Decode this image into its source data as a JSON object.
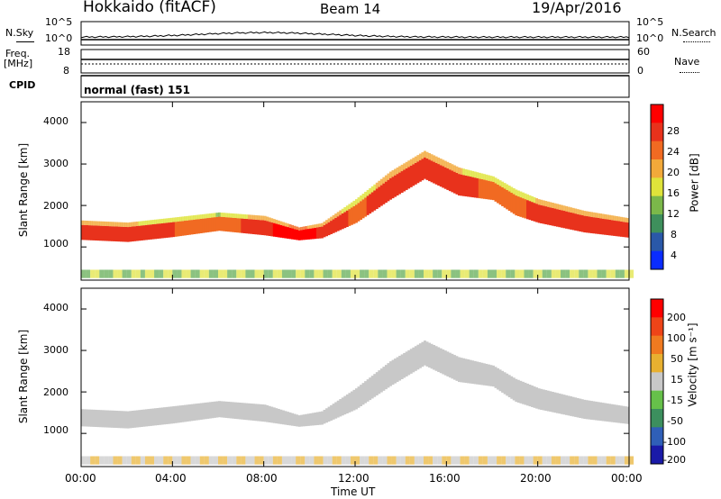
{
  "header": {
    "station": "Hokkaido (fitACF)",
    "beam": "Beam 14",
    "date": "19/Apr/2016"
  },
  "noise_panel": {
    "left_label": "N.Sky",
    "right_label": "N.Search",
    "left_ticks": [
      "10^5",
      "10^0"
    ],
    "right_ticks": [
      "10^5",
      "10^0"
    ]
  },
  "freq_panel": {
    "label_line1": "Freq.",
    "label_line2": "[MHz]",
    "right_label": "Nave",
    "left_ticks": [
      "18",
      "8"
    ],
    "right_ticks": [
      "60",
      "0"
    ]
  },
  "cpid_panel": {
    "label": "CPID",
    "mode_text": "normal (fast) 151"
  },
  "xaxis": {
    "label": "Time UT",
    "ticks": [
      "00:00",
      "04:00",
      "08:00",
      "12:00",
      "16:00",
      "20:00",
      "00:00"
    ]
  },
  "power_colorbar": {
    "title": "Power [dB]",
    "ticks": [
      "28",
      "24",
      "20",
      "16",
      "12",
      "8",
      "4"
    ],
    "colors": [
      "#0a2cff",
      "#2a58a8",
      "#3e8f5c",
      "#7bb84a",
      "#dfe33a",
      "#f2a93a",
      "#f16a22",
      "#e8321c",
      "#ff0000"
    ]
  },
  "velocity_colorbar": {
    "title": "Velocity [m s⁻¹]",
    "ticks": [
      "200",
      "100",
      "50",
      "15",
      "-15",
      "-50",
      "-100",
      "-200"
    ],
    "colors": [
      "#1a1aa8",
      "#2f5fb8",
      "#3c8f5e",
      "#66c04a",
      "#c8c8c8",
      "#e8b030",
      "#f07a20",
      "#ee4418",
      "#ff0000"
    ]
  },
  "chart_data": {
    "type": "heatmap",
    "x_range_hours": [
      0,
      24
    ],
    "panels": [
      {
        "name": "Power",
        "ylabel": "Slant Range [km]",
        "yticks": [
          1000,
          2000,
          3000,
          4000
        ],
        "ylim": [
          200,
          4500
        ],
        "zlabel": "Power [dB]",
        "zlim": [
          0,
          32
        ]
      },
      {
        "name": "Velocity",
        "ylabel": "Slant Range [km]",
        "yticks": [
          1000,
          2000,
          3000,
          4000
        ],
        "ylim": [
          200,
          4500
        ],
        "zlabel": "Velocity [m s-1]",
        "zlim": [
          -250,
          250
        ]
      }
    ],
    "main_echo_band": {
      "time_h": [
        0,
        2,
        4,
        6,
        8,
        9.5,
        10.5,
        12,
        13.5,
        15,
        16.5,
        18,
        19,
        20,
        22,
        24
      ],
      "center_km": [
        1350,
        1300,
        1420,
        1560,
        1460,
        1280,
        1350,
        1800,
        2400,
        2900,
        2500,
        2350,
        2000,
        1800,
        1550,
        1400
      ],
      "halfwidth_km": [
        180,
        180,
        180,
        170,
        180,
        120,
        140,
        220,
        260,
        260,
        260,
        220,
        240,
        220,
        200,
        180
      ],
      "power_db": [
        26,
        26,
        25,
        22,
        28,
        30,
        28,
        24,
        27,
        28,
        26,
        24,
        24,
        26,
        26,
        27
      ],
      "velocity_ms": [
        0,
        0,
        0,
        0,
        5,
        5,
        0,
        -5,
        0,
        0,
        0,
        -5,
        0,
        0,
        0,
        0
      ]
    }
  }
}
